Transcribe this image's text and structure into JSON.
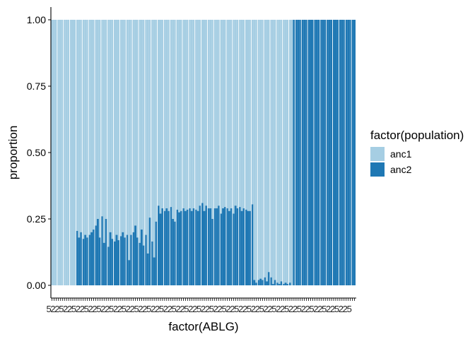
{
  "chart_data": {
    "type": "bar",
    "stacked": true,
    "xlabel": "factor(ABLG)",
    "ylabel": "proportion",
    "ylim": [
      0,
      1
    ],
    "y_ticks": [
      "0.00",
      "0.25",
      "0.50",
      "0.75",
      "1.00"
    ],
    "y_tick_values": [
      0,
      0.25,
      0.5,
      0.75,
      1
    ],
    "x_tick_labels": [
      "5",
      "2",
      "2"
    ],
    "grid": false,
    "legend": {
      "title": "factor(population)",
      "placement": "right",
      "entries": [
        {
          "name": "anc1",
          "color": "#a6cee3"
        },
        {
          "name": "anc2",
          "color": "#1f78b4"
        }
      ]
    },
    "series": [
      {
        "name": "anc1",
        "color": "#a6cee3"
      },
      {
        "name": "anc2",
        "color": "#1f78b4"
      }
    ],
    "anc2_values": [
      0,
      0,
      0,
      0,
      0,
      0,
      0,
      0,
      0,
      0,
      0,
      0,
      0.205,
      0.18,
      0.2,
      0.175,
      0.19,
      0.18,
      0.19,
      0.2,
      0.21,
      0.225,
      0.25,
      0.18,
      0.26,
      0.16,
      0.25,
      0.145,
      0.2,
      0.175,
      0.165,
      0.19,
      0.17,
      0.185,
      0.2,
      0.18,
      0.19,
      0.095,
      0.19,
      0.2,
      0.225,
      0.18,
      0.16,
      0.21,
      0.15,
      0.19,
      0.12,
      0.255,
      0.165,
      0.105,
      0.24,
      0.3,
      0.27,
      0.29,
      0.28,
      0.29,
      0.28,
      0.295,
      0.25,
      0.24,
      0.285,
      0.275,
      0.28,
      0.29,
      0.28,
      0.285,
      0.29,
      0.28,
      0.29,
      0.285,
      0.28,
      0.3,
      0.31,
      0.28,
      0.3,
      0.29,
      0.29,
      0.25,
      0.29,
      0.29,
      0.3,
      0.27,
      0.29,
      0.295,
      0.29,
      0.28,
      0.29,
      0.27,
      0.3,
      0.29,
      0.295,
      0.28,
      0.29,
      0.285,
      0.28,
      0.28,
      0.305,
      0.02,
      0.01,
      0.02,
      0.025,
      0.02,
      0.03,
      0.015,
      0.05,
      0.03,
      0.005,
      0.02,
      0.01,
      0.005,
      0.015,
      0.005,
      0.01,
      0.005,
      0.01,
      0,
      1,
      1,
      1,
      1,
      1,
      1,
      1,
      1,
      1,
      1,
      1,
      1,
      1,
      1,
      1,
      1,
      1,
      1,
      1,
      1,
      1,
      1,
      1,
      1,
      1,
      1,
      1,
      1,
      1,
      1
    ]
  }
}
